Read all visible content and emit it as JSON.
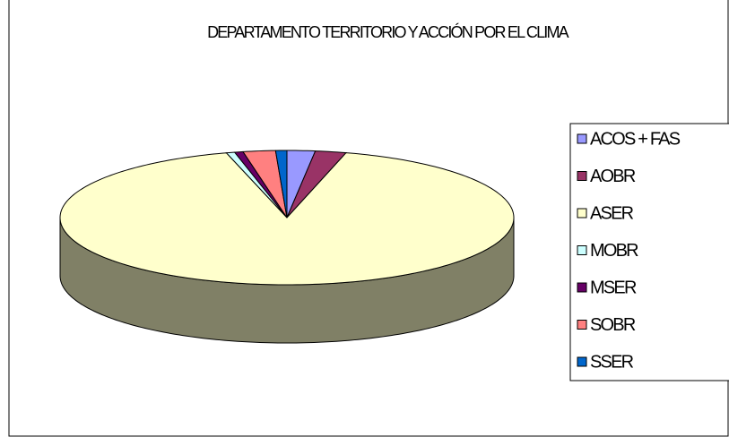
{
  "chart_data": {
    "type": "pie3d",
    "title": "DEPARTAMENTO TERRITORIO Y ACCIÓN POR EL CLIMA",
    "categories": [
      "ACOS + FAS",
      "AOBR",
      "ASER",
      "MOBR",
      "MSER",
      "SOBR",
      "SSER"
    ],
    "values": [
      2,
      2.2,
      91.5,
      0.6,
      0.6,
      2.3,
      0.8
    ],
    "colors": [
      "#9999ff",
      "#993366",
      "#ffffcc",
      "#ccffff",
      "#660066",
      "#ff8080",
      "#0066cc"
    ],
    "legend": "right"
  }
}
